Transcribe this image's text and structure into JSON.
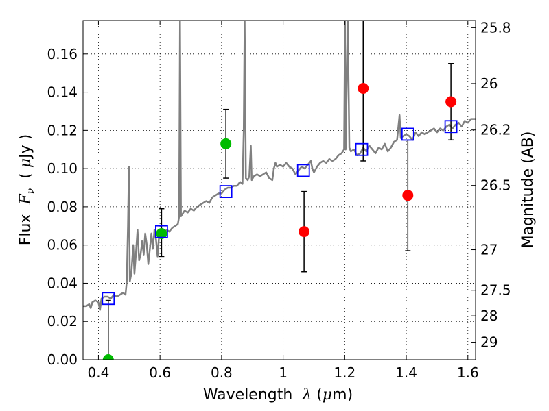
{
  "chart_data": {
    "type": "scatter",
    "xlabel_prefix": "Wavelength  ",
    "xlabel_math": "λ",
    "xlabel_suffix": " (",
    "xlabel_unit_math": "μ",
    "xlabel_unit_end": "m)",
    "ylabel_prefix": "Flux  ",
    "ylabel_math": "F",
    "ylabel_sub": "ν",
    "ylabel_suffix": "  ( ",
    "ylabel_unit_math": "μ",
    "ylabel_unit_end": "Jy )",
    "y2label": "Magnitude (AB)",
    "xlim": [
      0.35,
      1.625
    ],
    "ylim": [
      0.0,
      0.1775
    ],
    "xticks": [
      0.4,
      0.6,
      0.8,
      1.0,
      1.2,
      1.4,
      1.6
    ],
    "xtick_labels": [
      "0.4",
      "0.6",
      "0.8",
      "1",
      "1.2",
      "1.4",
      "1.6"
    ],
    "yticks": [
      0.0,
      0.02,
      0.04,
      0.06,
      0.08,
      0.1,
      0.12,
      0.14,
      0.16
    ],
    "ytick_labels": [
      "0.00",
      "0.02",
      "0.04",
      "0.06",
      "0.08",
      "0.10",
      "0.12",
      "0.14",
      "0.16"
    ],
    "mag_ticks": [
      25.8,
      26,
      26.2,
      26.5,
      27,
      27.5,
      28,
      29
    ],
    "mag_tick_labels": [
      "25.8",
      "26",
      "26.2",
      "26.5",
      "27",
      "27.5",
      "28",
      "29"
    ],
    "grid": true,
    "colors": {
      "spectrum": "#808080",
      "green": "#00bb00",
      "red": "#ff0000",
      "model_box": "#0000ff",
      "errorbar": "#000000"
    },
    "series": [
      {
        "kind": "line",
        "points": [
          [
            0.35,
            0.028
          ],
          [
            0.36,
            0.028
          ],
          [
            0.37,
            0.029
          ],
          [
            0.375,
            0.027
          ],
          [
            0.38,
            0.03
          ],
          [
            0.39,
            0.031
          ],
          [
            0.4,
            0.03
          ],
          [
            0.405,
            0.026
          ],
          [
            0.41,
            0.032
          ],
          [
            0.42,
            0.033
          ],
          [
            0.43,
            0.033
          ],
          [
            0.44,
            0.032
          ],
          [
            0.45,
            0.034
          ],
          [
            0.46,
            0.033
          ],
          [
            0.47,
            0.034
          ],
          [
            0.48,
            0.035
          ],
          [
            0.488,
            0.034
          ],
          [
            0.492,
            0.041
          ],
          [
            0.496,
            0.07
          ],
          [
            0.499,
            0.101
          ],
          [
            0.502,
            0.041
          ],
          [
            0.507,
            0.045
          ],
          [
            0.513,
            0.06
          ],
          [
            0.517,
            0.045
          ],
          [
            0.522,
            0.056
          ],
          [
            0.527,
            0.068
          ],
          [
            0.532,
            0.052
          ],
          [
            0.537,
            0.055
          ],
          [
            0.542,
            0.062
          ],
          [
            0.547,
            0.055
          ],
          [
            0.552,
            0.066
          ],
          [
            0.557,
            0.06
          ],
          [
            0.562,
            0.05
          ],
          [
            0.567,
            0.058
          ],
          [
            0.572,
            0.066
          ],
          [
            0.577,
            0.058
          ],
          [
            0.582,
            0.068
          ],
          [
            0.587,
            0.063
          ],
          [
            0.592,
            0.054
          ],
          [
            0.597,
            0.065
          ],
          [
            0.602,
            0.068
          ],
          [
            0.607,
            0.067
          ],
          [
            0.612,
            0.066
          ],
          [
            0.617,
            0.067
          ],
          [
            0.622,
            0.068
          ],
          [
            0.63,
            0.067
          ],
          [
            0.64,
            0.069
          ],
          [
            0.65,
            0.07
          ],
          [
            0.658,
            0.071
          ],
          [
            0.662,
            0.075
          ],
          [
            0.665,
            0.178
          ],
          [
            0.668,
            0.075
          ],
          [
            0.672,
            0.076
          ],
          [
            0.68,
            0.078
          ],
          [
            0.69,
            0.077
          ],
          [
            0.7,
            0.079
          ],
          [
            0.71,
            0.078
          ],
          [
            0.72,
            0.08
          ],
          [
            0.73,
            0.081
          ],
          [
            0.74,
            0.082
          ],
          [
            0.75,
            0.083
          ],
          [
            0.76,
            0.082
          ],
          [
            0.77,
            0.085
          ],
          [
            0.78,
            0.086
          ],
          [
            0.79,
            0.087
          ],
          [
            0.8,
            0.087
          ],
          [
            0.81,
            0.089
          ],
          [
            0.82,
            0.09
          ],
          [
            0.83,
            0.09
          ],
          [
            0.84,
            0.091
          ],
          [
            0.85,
            0.091
          ],
          [
            0.86,
            0.093
          ],
          [
            0.868,
            0.092
          ],
          [
            0.872,
            0.12
          ],
          [
            0.875,
            0.178
          ],
          [
            0.879,
            0.095
          ],
          [
            0.885,
            0.094
          ],
          [
            0.89,
            0.096
          ],
          [
            0.895,
            0.112
          ],
          [
            0.898,
            0.094
          ],
          [
            0.905,
            0.096
          ],
          [
            0.915,
            0.097
          ],
          [
            0.925,
            0.096
          ],
          [
            0.935,
            0.097
          ],
          [
            0.945,
            0.098
          ],
          [
            0.955,
            0.095
          ],
          [
            0.965,
            0.094
          ],
          [
            0.97,
            0.1
          ],
          [
            0.975,
            0.103
          ],
          [
            0.98,
            0.101
          ],
          [
            0.99,
            0.102
          ],
          [
            1.0,
            0.101
          ],
          [
            1.01,
            0.103
          ],
          [
            1.02,
            0.101
          ],
          [
            1.03,
            0.1
          ],
          [
            1.04,
            0.097
          ],
          [
            1.05,
            0.099
          ],
          [
            1.06,
            0.101
          ],
          [
            1.07,
            0.1
          ],
          [
            1.08,
            0.102
          ],
          [
            1.09,
            0.104
          ],
          [
            1.095,
            0.1
          ],
          [
            1.1,
            0.098
          ],
          [
            1.11,
            0.101
          ],
          [
            1.12,
            0.103
          ],
          [
            1.13,
            0.104
          ],
          [
            1.14,
            0.103
          ],
          [
            1.15,
            0.105
          ],
          [
            1.16,
            0.104
          ],
          [
            1.17,
            0.105
          ],
          [
            1.18,
            0.107
          ],
          [
            1.19,
            0.108
          ],
          [
            1.198,
            0.11
          ],
          [
            1.201,
            0.178
          ],
          [
            1.203,
            0.11
          ],
          [
            1.21,
            0.178
          ],
          [
            1.215,
            0.111
          ],
          [
            1.22,
            0.109
          ],
          [
            1.23,
            0.11
          ],
          [
            1.24,
            0.107
          ],
          [
            1.25,
            0.108
          ],
          [
            1.26,
            0.111
          ],
          [
            1.27,
            0.109
          ],
          [
            1.28,
            0.112
          ],
          [
            1.29,
            0.11
          ],
          [
            1.3,
            0.108
          ],
          [
            1.31,
            0.111
          ],
          [
            1.32,
            0.11
          ],
          [
            1.33,
            0.113
          ],
          [
            1.34,
            0.109
          ],
          [
            1.35,
            0.111
          ],
          [
            1.36,
            0.114
          ],
          [
            1.37,
            0.115
          ],
          [
            1.378,
            0.128
          ],
          [
            1.382,
            0.116
          ],
          [
            1.39,
            0.117
          ],
          [
            1.4,
            0.118
          ],
          [
            1.41,
            0.117
          ],
          [
            1.42,
            0.115
          ],
          [
            1.43,
            0.119
          ],
          [
            1.44,
            0.117
          ],
          [
            1.45,
            0.119
          ],
          [
            1.46,
            0.118
          ],
          [
            1.47,
            0.119
          ],
          [
            1.48,
            0.12
          ],
          [
            1.49,
            0.121
          ],
          [
            1.5,
            0.119
          ],
          [
            1.51,
            0.121
          ],
          [
            1.52,
            0.12
          ],
          [
            1.53,
            0.122
          ],
          [
            1.54,
            0.123
          ],
          [
            1.55,
            0.121
          ],
          [
            1.56,
            0.123
          ],
          [
            1.57,
            0.124
          ],
          [
            1.58,
            0.122
          ],
          [
            1.59,
            0.125
          ],
          [
            1.6,
            0.124
          ],
          [
            1.61,
            0.126
          ],
          [
            1.625,
            0.126
          ]
        ]
      },
      {
        "kind": "errorbar-markers",
        "marker": "circle",
        "color": "#00bb00",
        "points": [
          {
            "x": 0.432,
            "y": 0.0,
            "yerr_low": 0.0,
            "yerr_high": 0.0
          },
          {
            "x": 0.605,
            "y": 0.066,
            "yerr_low": 0.054,
            "yerr_high": 0.079
          },
          {
            "x": 0.814,
            "y": 0.113,
            "yerr_low": 0.095,
            "yerr_high": 0.131
          }
        ]
      },
      {
        "kind": "errorbar-markers",
        "marker": "circle",
        "color": "#ff0000",
        "points": [
          {
            "x": 1.068,
            "y": 0.067,
            "yerr_low": 0.046,
            "yerr_high": 0.088
          },
          {
            "x": 1.26,
            "y": 0.142,
            "yerr_low": 0.104,
            "yerr_high": 0.18
          },
          {
            "x": 1.405,
            "y": 0.086,
            "yerr_low": 0.057,
            "yerr_high": 0.115
          },
          {
            "x": 1.545,
            "y": 0.135,
            "yerr_low": 0.115,
            "yerr_high": 0.155
          }
        ]
      },
      {
        "kind": "errorbar-only",
        "color": "#000000",
        "points": [
          {
            "x": 0.432,
            "yerr_low": 0.0,
            "yerr_high": 0.031
          }
        ]
      },
      {
        "kind": "model-points",
        "marker": "open-square",
        "color": "#0000ff",
        "points": [
          [
            0.432,
            0.032
          ],
          [
            0.605,
            0.067
          ],
          [
            0.814,
            0.088
          ],
          [
            1.066,
            0.099
          ],
          [
            1.255,
            0.11
          ],
          [
            1.405,
            0.118
          ],
          [
            1.545,
            0.122
          ]
        ]
      }
    ]
  }
}
